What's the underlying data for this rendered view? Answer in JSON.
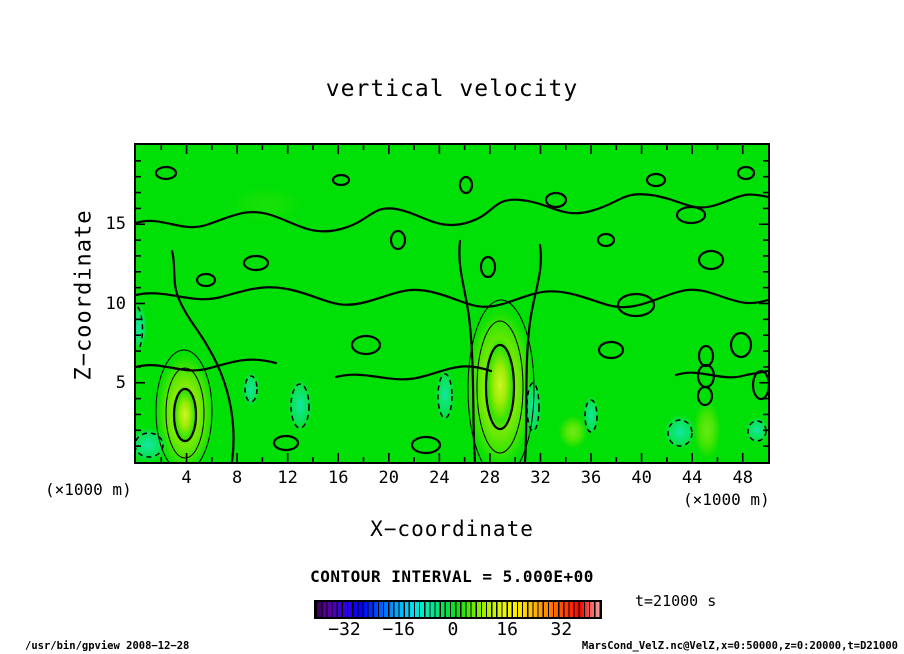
{
  "title": "vertical velocity",
  "axes": {
    "x_label": "X−coordinate",
    "y_label": "Z−coordinate",
    "x_units": "(×1000 m)",
    "y_units": "(×1000 m)"
  },
  "contour_caption": "CONTOUR INTERVAL = 5.000E+00",
  "time_label": "t=21000 s",
  "footer_left": "/usr/bin/gpview  2008−12−28",
  "footer_right": "MarsCond_VelZ.nc@VelZ,x=0:50000,z=0:20000,t=D21000",
  "colorbar": {
    "range": [
      -41,
      44
    ],
    "tick_values": [
      -32,
      -16,
      0,
      16,
      32
    ],
    "tick_labels": [
      "−32",
      "−16",
      "0",
      "16",
      "32"
    ],
    "border_color": "#000000",
    "colors": [
      "#38004d",
      "#5a00a0",
      "#4400cc",
      "#2200ee",
      "#0000ff",
      "#0044ff",
      "#0088ff",
      "#00bbff",
      "#00e0f0",
      "#00eec0",
      "#00e888",
      "#00e24a",
      "#10e010",
      "#55e800",
      "#8fee00",
      "#c0f400",
      "#e8f800",
      "#fff000",
      "#ffd000",
      "#ffaa00",
      "#ff8000",
      "#ff5500",
      "#ff2a00",
      "#ee0800",
      "#f05050",
      "#f4a0a0"
    ]
  },
  "chart_data": {
    "type": "heatmap",
    "subtype": "filled-contour-plot",
    "title": "vertical velocity",
    "xlabel": "X−coordinate (×1000 m)",
    "ylabel": "Z−coordinate (×1000 m)",
    "xlim": [
      0,
      50
    ],
    "ylim": [
      0,
      20
    ],
    "x_major_ticks": [
      4,
      8,
      12,
      16,
      20,
      24,
      28,
      32,
      36,
      40,
      44,
      48
    ],
    "x_minor_step": 2,
    "y_major_ticks": [
      5,
      10,
      15
    ],
    "y_minor_step": 1,
    "grid": false,
    "contour_interval": 5.0,
    "contour_style": {
      "positive": "solid-black",
      "negative": "dashed-black",
      "fill_background": "#00df06"
    },
    "colorbar_ticks": [
      -32,
      -16,
      0,
      16,
      32
    ],
    "time_annotation": "t=21000 s",
    "legend_position": "bottom-center",
    "features": [
      {
        "type": "updraft-maximum",
        "x_km": 4,
        "z_km": 2.5,
        "approx_value": 17,
        "appearance": "yellow-green core with 3 closed contours"
      },
      {
        "type": "updraft-maximum",
        "x_km": 29,
        "z_km": 3.8,
        "approx_value": 22,
        "appearance": "tall yellow-green plume with 3 closed contours reaching the surface"
      },
      {
        "type": "weak-updraft",
        "x_km": 24,
        "z_km": 2.0,
        "approx_value": 7
      },
      {
        "type": "weak-updraft",
        "x_km": 34.5,
        "z_km": 2.0,
        "approx_value": 7
      },
      {
        "type": "downdraft-region",
        "x_km": 13,
        "z_km": 3.5,
        "approx_value": -6,
        "appearance": "cyan patch with dashed contours"
      },
      {
        "type": "downdraft-region",
        "x_km": 24.5,
        "z_km": 4.2,
        "approx_value": -6,
        "appearance": "cyan patch with dashed contours"
      },
      {
        "type": "downdraft-region",
        "x_km": 31.5,
        "z_km": 3.5,
        "approx_value": -6,
        "appearance": "cyan patch with dashed contours"
      },
      {
        "type": "downdraft-region",
        "x_km": 43,
        "z_km": 1.8,
        "approx_value": -5,
        "appearance": "cyan patch with dashed contours"
      },
      {
        "type": "downdraft-region",
        "x_km": 49,
        "z_km": 2.0,
        "approx_value": -5,
        "appearance": "cyan patch with dashed contours"
      },
      {
        "type": "zero-contour-network",
        "description": "wavy solid black zero contours spanning the full domain, densest between z=4 and z=12 km"
      }
    ]
  }
}
